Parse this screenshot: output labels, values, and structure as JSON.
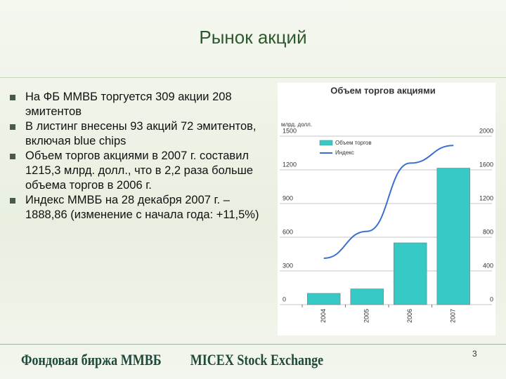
{
  "header": {
    "title": "Рынок акций"
  },
  "bullets": [
    "На ФБ ММВБ торгуется 309 акции 208 эмитентов",
    "В листинг внесены 93 акций 72 эмитентов, включая blue chips",
    "Объем торгов акциями в 2007 г. составил 1215,3 млрд. долл., что в 2,2 раза больше объема торгов в 2006 г.",
    "Индекс ММВБ на 28 декабря 2007 г. – 1888,86 (изменение с начала года: +11,5%)"
  ],
  "chart_data": {
    "type": "bar_line",
    "title": "Объем торгов акциями",
    "y_label": "млрд. долл.",
    "categories": [
      "2004",
      "2005",
      "2006",
      "2007"
    ],
    "series": [
      {
        "name": "Объем торгов",
        "color": "#36c9c6",
        "values": [
          100,
          140,
          550,
          1215.3
        ]
      },
      {
        "name": "Индекс",
        "color": "#3a6fd0",
        "values": [
          550,
          870,
          1680,
          1890
        ],
        "axis": "y2"
      }
    ],
    "ylim": [
      0,
      1500
    ],
    "yticks": [
      0,
      300,
      600,
      900,
      1200,
      1500
    ],
    "y2lim": [
      0,
      2000
    ],
    "y2ticks": [
      0,
      400,
      800,
      1200,
      1600,
      2000
    ]
  },
  "footer": {
    "logo_ru": "Фондовая биржа ММВБ",
    "logo_en": "MICEX Stock Exchange",
    "page": "3"
  }
}
